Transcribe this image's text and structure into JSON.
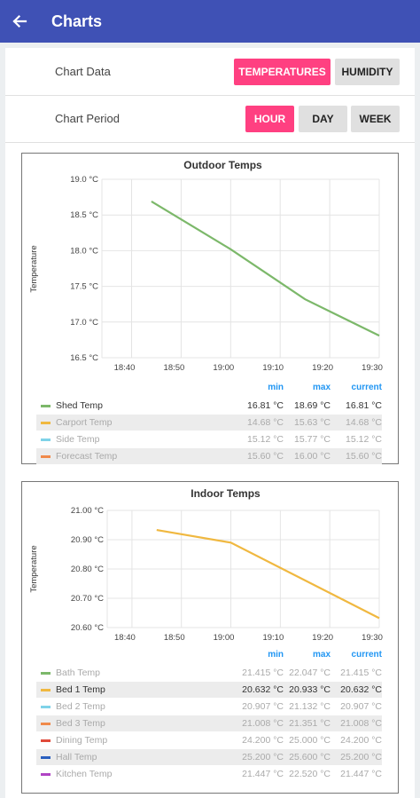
{
  "appbar": {
    "title": "Charts",
    "back_icon": "arrow-left-icon"
  },
  "settings": {
    "chart_data_label": "Chart Data",
    "chart_data_options": [
      {
        "label": "TEMPERATURES",
        "active": true
      },
      {
        "label": "HUMIDITY",
        "active": false
      }
    ],
    "chart_period_label": "Chart Period",
    "chart_period_options": [
      {
        "label": "HOUR",
        "active": true
      },
      {
        "label": "DAY",
        "active": false
      },
      {
        "label": "WEEK",
        "active": false
      }
    ]
  },
  "colors": {
    "appbar": "#3f51b5",
    "accent": "#ff4081",
    "header_blue": "#2196f3"
  },
  "chart_data": [
    {
      "type": "line",
      "title": "Outdoor Temps",
      "ylabel": "Temperature",
      "y_ticks": [
        "19.0 °C",
        "18.5 °C",
        "18.0 °C",
        "17.5 °C",
        "17.0 °C",
        "16.5 °C"
      ],
      "x_ticks": [
        "18:40",
        "18:50",
        "19:00",
        "19:10",
        "19:20",
        "19:30"
      ],
      "ylim": [
        16.5,
        19.0
      ],
      "xlim": [
        "18:34",
        "19:30"
      ],
      "grid": true,
      "series": [
        {
          "name": "Shed Temp",
          "color": "#7cb86a",
          "x": [
            "18:44",
            "19:00",
            "19:15",
            "19:30"
          ],
          "values": [
            18.69,
            18.02,
            17.32,
            16.81
          ]
        }
      ],
      "table": {
        "headers": [
          "min",
          "max",
          "current"
        ],
        "rows": [
          {
            "name": "Shed Temp",
            "color": "#7cb86a",
            "min": "16.81 °C",
            "max": "18.69 °C",
            "current": "16.81 °C",
            "visible": true
          },
          {
            "name": "Carport Temp",
            "color": "#f0b840",
            "min": "14.68 °C",
            "max": "15.63 °C",
            "current": "14.68 °C",
            "visible": false
          },
          {
            "name": "Side Temp",
            "color": "#7fd3e8",
            "min": "15.12 °C",
            "max": "15.77 °C",
            "current": "15.12 °C",
            "visible": false
          },
          {
            "name": "Forecast Temp",
            "color": "#f08a4b",
            "min": "15.60 °C",
            "max": "16.00 °C",
            "current": "15.60 °C",
            "visible": false
          }
        ]
      }
    },
    {
      "type": "line",
      "title": "Indoor Temps",
      "ylabel": "Temperature",
      "y_ticks": [
        "21.00 °C",
        "20.90 °C",
        "20.80 °C",
        "20.70 °C",
        "20.60 °C"
      ],
      "x_ticks": [
        "18:40",
        "18:50",
        "19:00",
        "19:10",
        "19:20",
        "19:30"
      ],
      "ylim": [
        20.6,
        21.0
      ],
      "xlim": [
        "18:35",
        "19:30"
      ],
      "grid": true,
      "series": [
        {
          "name": "Bed 1 Temp",
          "color": "#f0b840",
          "x": [
            "18:45",
            "19:00",
            "19:30"
          ],
          "values": [
            20.933,
            20.89,
            20.632
          ]
        }
      ],
      "table": {
        "headers": [
          "min",
          "max",
          "current"
        ],
        "rows": [
          {
            "name": "Bath Temp",
            "color": "#7cb86a",
            "min": "21.415 °C",
            "max": "22.047 °C",
            "current": "21.415 °C",
            "visible": false
          },
          {
            "name": "Bed 1 Temp",
            "color": "#f0b840",
            "min": "20.632 °C",
            "max": "20.933 °C",
            "current": "20.632 °C",
            "visible": true
          },
          {
            "name": "Bed 2 Temp",
            "color": "#7fd3e8",
            "min": "20.907 °C",
            "max": "21.132 °C",
            "current": "20.907 °C",
            "visible": false
          },
          {
            "name": "Bed 3 Temp",
            "color": "#f08a4b",
            "min": "21.008 °C",
            "max": "21.351 °C",
            "current": "21.008 °C",
            "visible": false
          },
          {
            "name": "Dining Temp",
            "color": "#e04a3a",
            "min": "24.200 °C",
            "max": "25.000 °C",
            "current": "24.200 °C",
            "visible": false
          },
          {
            "name": "Hall Temp",
            "color": "#2a5fbf",
            "min": "25.200 °C",
            "max": "25.600 °C",
            "current": "25.200 °C",
            "visible": false
          },
          {
            "name": "Kitchen Temp",
            "color": "#b044c4",
            "min": "21.447 °C",
            "max": "22.520 °C",
            "current": "21.447 °C",
            "visible": false
          }
        ]
      }
    }
  ]
}
